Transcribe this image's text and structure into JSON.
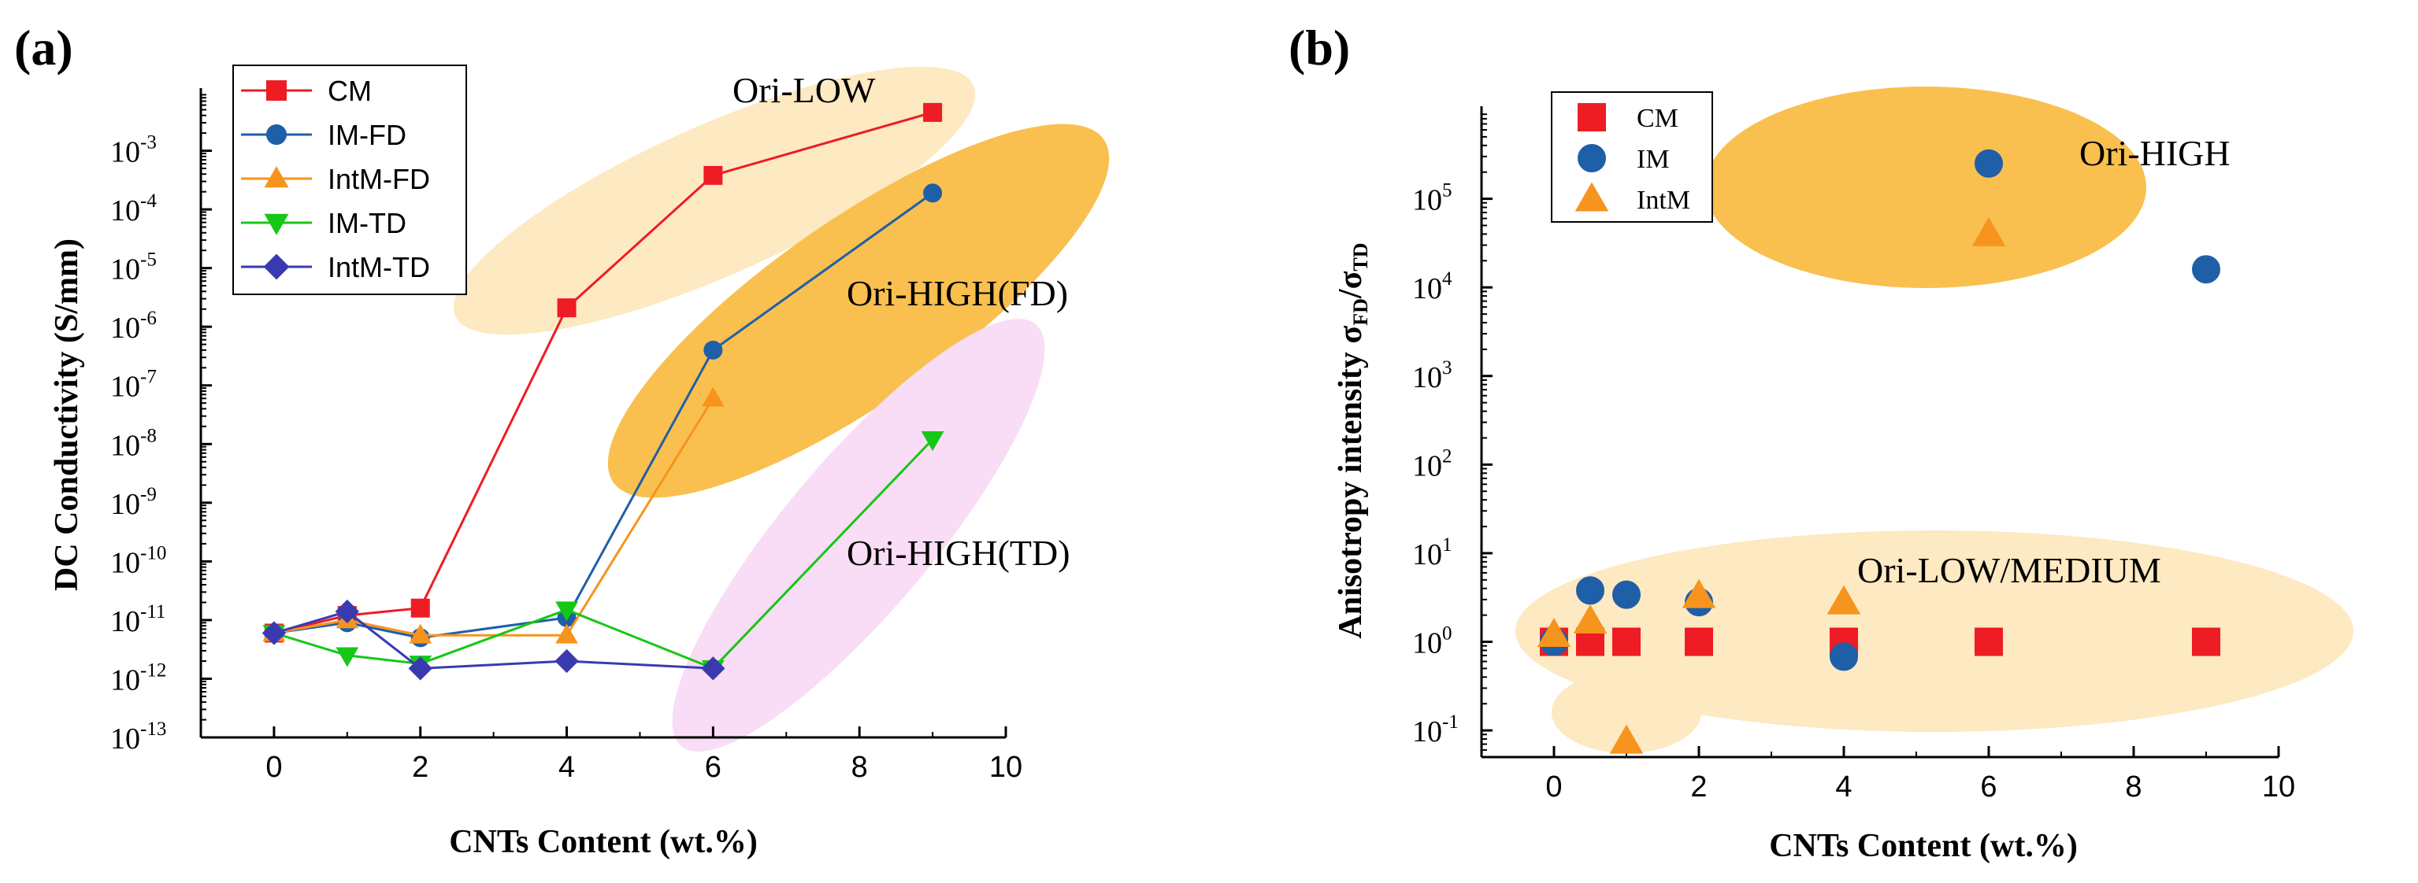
{
  "figure_labels": {
    "a": "(a)",
    "b": "(b)"
  },
  "colors": {
    "CM": "#ee1c24",
    "IM-FD": "#1f5fa8",
    "IntM-FD": "#f7941d",
    "IM-TD": "#16c716",
    "IntM-TD": "#3a3ab0",
    "ori_low_a": "#fde9c2",
    "ori_high_fd": "#f9c04f",
    "ori_high_td": "#f9dcf5",
    "ori_high_b": "#f9c04f",
    "ori_low_medium_b": "#fde9c2"
  },
  "chart_data": [
    {
      "id": "a",
      "type": "line",
      "title": "",
      "xlabel": "CNTs Content (wt.%)",
      "ylabel": "DC Conductivity (S/mm)",
      "yscale": "log",
      "xlim": [
        -1,
        10
      ],
      "ylim": [
        1e-13,
        0.01
      ],
      "x_ticks": [
        0,
        2,
        4,
        6,
        8,
        10
      ],
      "x_tick_labels": [
        "0",
        "2",
        "4",
        "6",
        "8",
        "10"
      ],
      "y_tick_labels": [
        {
          "base": "10",
          "exp": "-13"
        },
        {
          "base": "10",
          "exp": "-12"
        },
        {
          "base": "10",
          "exp": "-11"
        },
        {
          "base": "10",
          "exp": "-10"
        },
        {
          "base": "10",
          "exp": "-9"
        },
        {
          "base": "10",
          "exp": "-8"
        },
        {
          "base": "10",
          "exp": "-7"
        },
        {
          "base": "10",
          "exp": "-6"
        },
        {
          "base": "10",
          "exp": "-5"
        },
        {
          "base": "10",
          "exp": "-4"
        },
        {
          "base": "10",
          "exp": "-3"
        }
      ],
      "series": [
        {
          "name": "CM",
          "marker": "square",
          "x": [
            0,
            1,
            2,
            4,
            6,
            9
          ],
          "values": [
            6e-12,
            1.2e-11,
            1.6e-11,
            2.1e-06,
            0.00038,
            0.0045
          ]
        },
        {
          "name": "IM-FD",
          "marker": "circle",
          "x": [
            0,
            1,
            2,
            4,
            6,
            9
          ],
          "values": [
            6e-12,
            9e-12,
            5e-12,
            1.1e-11,
            4e-07,
            0.00019
          ]
        },
        {
          "name": "IntM-FD",
          "marker": "triangle-up",
          "x": [
            0,
            1,
            2,
            4,
            6
          ],
          "values": [
            6e-12,
            1e-11,
            5.5e-12,
            5.5e-12,
            6e-08
          ]
        },
        {
          "name": "IM-TD",
          "marker": "triangle-down",
          "x": [
            0,
            1,
            2,
            4,
            6,
            9
          ],
          "values": [
            6e-12,
            2.5e-12,
            1.8e-12,
            1.5e-11,
            1.5e-12,
            1.2e-08
          ]
        },
        {
          "name": "IntM-TD",
          "marker": "diamond",
          "x": [
            0,
            1,
            2,
            4,
            6
          ],
          "values": [
            6e-12,
            1.4e-11,
            1.5e-12,
            2e-12,
            1.5e-12
          ]
        }
      ],
      "annotations": [
        "Ori-LOW",
        "Ori-HIGH(FD)",
        "Ori-HIGH(TD)"
      ],
      "legend_position": "top-left"
    },
    {
      "id": "b",
      "type": "scatter",
      "title": "",
      "xlabel": "CNTs Content (wt.%)",
      "ylabel_main": "Anisotropy intensity σ",
      "ylabel_sub1": "FD",
      "ylabel_mid": "/σ",
      "ylabel_sub2": "TD",
      "yscale": "log",
      "xlim": [
        -1,
        10
      ],
      "ylim": [
        0.05,
        1000000.0
      ],
      "x_ticks": [
        0,
        2,
        4,
        6,
        8,
        10
      ],
      "x_tick_labels": [
        "0",
        "2",
        "4",
        "6",
        "8",
        "10"
      ],
      "y_tick_labels": [
        {
          "base": "10",
          "exp": "-1"
        },
        {
          "base": "10",
          "exp": "0"
        },
        {
          "base": "10",
          "exp": "1"
        },
        {
          "base": "10",
          "exp": "2"
        },
        {
          "base": "10",
          "exp": "3"
        },
        {
          "base": "10",
          "exp": "4"
        },
        {
          "base": "10",
          "exp": "5"
        }
      ],
      "series": [
        {
          "name": "CM",
          "marker": "square",
          "x": [
            0,
            0.5,
            1,
            2,
            4,
            6,
            9
          ],
          "values": [
            1,
            1,
            1,
            1,
            1,
            1,
            1
          ]
        },
        {
          "name": "IM",
          "marker": "circle",
          "x": [
            0,
            0.5,
            1,
            2,
            4,
            6,
            9
          ],
          "values": [
            1,
            3.8,
            3.4,
            2.8,
            0.68,
            250000,
            16000
          ]
        },
        {
          "name": "IntM",
          "marker": "triangle-up",
          "x": [
            0,
            0.5,
            1,
            2,
            4,
            6
          ],
          "values": [
            1.2,
            1.7,
            0.075,
            3.3,
            2.8,
            40000
          ]
        }
      ],
      "annotations": [
        "Ori-HIGH",
        "Ori-LOW/MEDIUM"
      ],
      "legend_position": "top-left"
    }
  ]
}
